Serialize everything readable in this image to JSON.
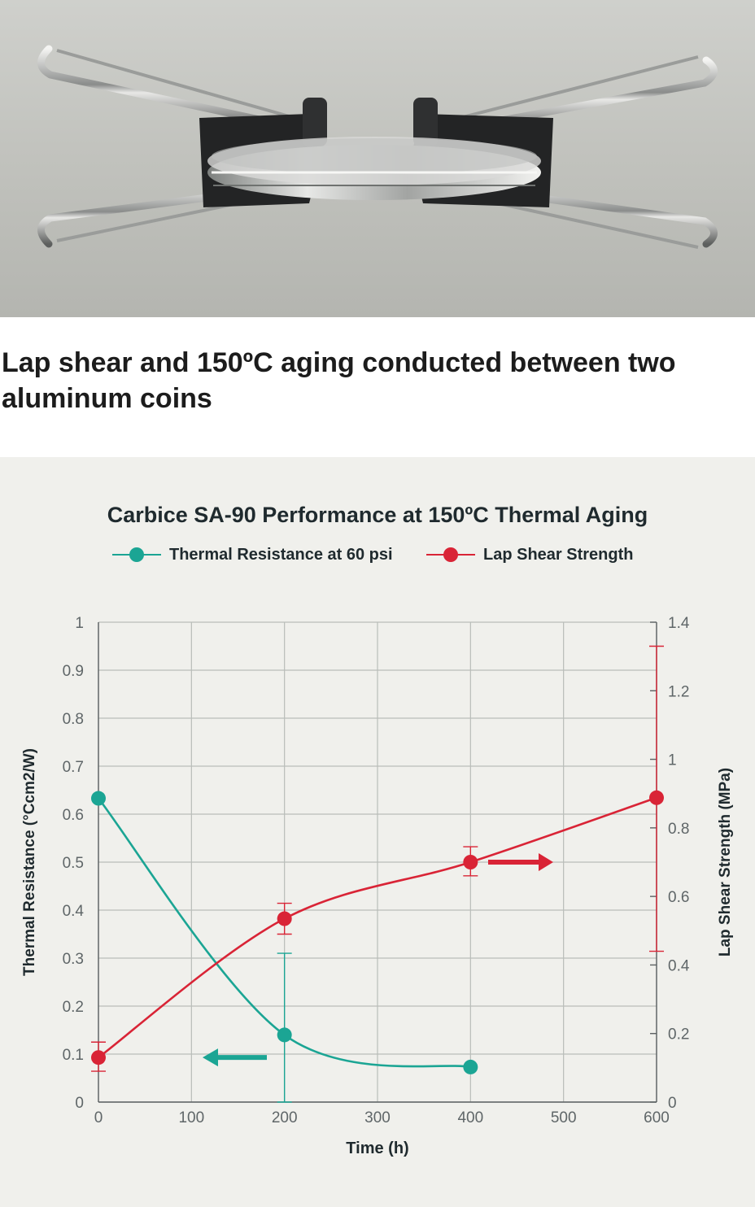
{
  "caption": "Lap shear and 150ºC aging conducted between two aluminum coins",
  "colors": {
    "teal": "#1ba594",
    "red": "#d92436",
    "grid": "#b9bdb9",
    "axis": "#5b6062",
    "panel": "#f0f0ec"
  },
  "chart_data": {
    "type": "line",
    "title": "Carbice SA-90 Performance at 150ºC Thermal Aging",
    "xlabel": "Time (h)",
    "ylabel_left": "Thermal Resistance (°Ccm2/W)",
    "ylabel_right": "Lap Shear Strength (MPa)",
    "xlim": [
      0,
      600
    ],
    "ylim_left": [
      0,
      1
    ],
    "ylim_right": [
      0,
      1.4
    ],
    "x_ticks": [
      "0",
      "100",
      "200",
      "300",
      "400",
      "500",
      "600"
    ],
    "y_left_ticks": [
      "0",
      "0.1",
      "0.2",
      "0.3",
      "0.4",
      "0.5",
      "0.6",
      "0.7",
      "0.8",
      "0.9",
      "1"
    ],
    "y_right_ticks": [
      "0",
      "0.2",
      "0.4",
      "0.6",
      "0.8",
      "1",
      "1.2",
      "1.4"
    ],
    "grid": true,
    "legend_position": "top-center",
    "series": [
      {
        "name": "Thermal Resistance at 60 psi",
        "axis": "left",
        "color": "teal",
        "x": [
          0,
          200,
          400
        ],
        "y": [
          0.633,
          0.14,
          0.073
        ],
        "error_low": [
          null,
          0,
          null
        ],
        "error_high": [
          null,
          0.31,
          null
        ]
      },
      {
        "name": "Lap Shear Strength",
        "axis": "right",
        "color": "red",
        "x": [
          0,
          200,
          400,
          600
        ],
        "y": [
          0.13,
          0.535,
          0.7,
          0.888
        ],
        "error_low": [
          0.09,
          0.49,
          0.66,
          0.44
        ],
        "error_high": [
          0.175,
          0.58,
          0.745,
          1.33
        ]
      }
    ]
  }
}
